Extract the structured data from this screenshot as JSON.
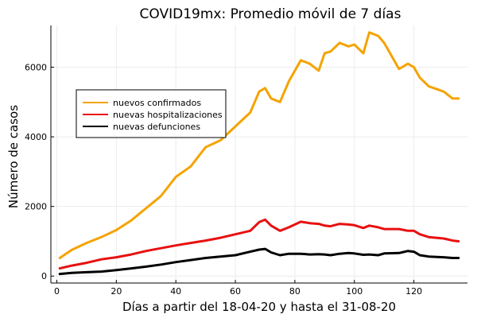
{
  "chart_data": {
    "type": "line",
    "title": "COVID19mx: Promedio móvil de 7 días",
    "xlabel": "Días a partir del 18-04-20 y hasta el 31-08-20",
    "ylabel": "Número de casos",
    "xlim": [
      -2,
      138
    ],
    "ylim": [
      -200,
      7200
    ],
    "xticks": [
      0,
      20,
      40,
      60,
      80,
      100,
      120
    ],
    "yticks": [
      0,
      2000,
      4000,
      6000
    ],
    "grid": true,
    "legend_position": "left",
    "x": [
      1,
      5,
      10,
      15,
      20,
      25,
      30,
      35,
      40,
      45,
      50,
      55,
      60,
      65,
      68,
      70,
      72,
      75,
      78,
      82,
      85,
      88,
      90,
      92,
      95,
      98,
      100,
      103,
      105,
      108,
      110,
      115,
      118,
      120,
      122,
      125,
      130,
      133,
      135
    ],
    "series": [
      {
        "name": "nuevos confirmados",
        "color": "#f5a300",
        "values": [
          520,
          750,
          950,
          1120,
          1320,
          1600,
          1950,
          2300,
          2850,
          3150,
          3700,
          3900,
          4300,
          4700,
          5300,
          5400,
          5100,
          5000,
          5600,
          6200,
          6100,
          5900,
          6400,
          6450,
          6700,
          6600,
          6650,
          6400,
          7000,
          6900,
          6700,
          5950,
          6100,
          6000,
          5700,
          5450,
          5300,
          5100,
          5100
        ]
      },
      {
        "name": "nuevas hospitalizaciones",
        "color": "#e81010",
        "values": [
          220,
          300,
          380,
          480,
          540,
          620,
          720,
          800,
          880,
          950,
          1020,
          1100,
          1200,
          1300,
          1550,
          1620,
          1450,
          1300,
          1400,
          1560,
          1520,
          1500,
          1450,
          1430,
          1500,
          1480,
          1460,
          1380,
          1450,
          1400,
          1350,
          1350,
          1300,
          1300,
          1200,
          1120,
          1080,
          1020,
          1000
        ]
      },
      {
        "name": "nuevas defunciones",
        "color": "#000000",
        "values": [
          60,
          90,
          110,
          130,
          170,
          220,
          270,
          330,
          400,
          460,
          520,
          560,
          600,
          700,
          760,
          780,
          680,
          600,
          640,
          640,
          620,
          630,
          620,
          600,
          640,
          660,
          650,
          610,
          620,
          600,
          650,
          660,
          720,
          700,
          600,
          560,
          540,
          520,
          520
        ]
      }
    ]
  }
}
